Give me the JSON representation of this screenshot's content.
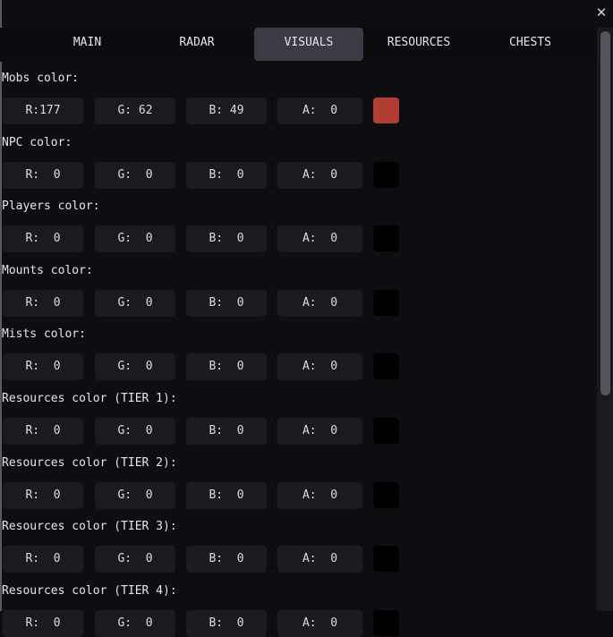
{
  "window": {
    "close_icon": "close-icon"
  },
  "tabs": [
    {
      "label": "MAIN",
      "active": false
    },
    {
      "label": "RADAR",
      "active": false
    },
    {
      "label": "VISUALS",
      "active": true
    },
    {
      "label": "RESOURCES",
      "active": false
    },
    {
      "label": "CHESTS",
      "active": false
    }
  ],
  "colors": {
    "accent_tab": "#3c3b45",
    "background": "#0f0d12",
    "field": "#1b1a21"
  },
  "rows": [
    {
      "label": "Mobs color:",
      "r": "177",
      "g": "62",
      "b": "49",
      "a": "0",
      "swatch": "#b13e31"
    },
    {
      "label": "NPC color:",
      "r": "0",
      "g": "0",
      "b": "0",
      "a": "0",
      "swatch": "#000000"
    },
    {
      "label": "Players color:",
      "r": "0",
      "g": "0",
      "b": "0",
      "a": "0",
      "swatch": "#000000"
    },
    {
      "label": "Mounts color:",
      "r": "0",
      "g": "0",
      "b": "0",
      "a": "0",
      "swatch": "#000000"
    },
    {
      "label": "Mists color:",
      "r": "0",
      "g": "0",
      "b": "0",
      "a": "0",
      "swatch": "#000000"
    },
    {
      "label": "Resources color (TIER 1):",
      "r": "0",
      "g": "0",
      "b": "0",
      "a": "0",
      "swatch": "#000000"
    },
    {
      "label": "Resources color (TIER 2):",
      "r": "0",
      "g": "0",
      "b": "0",
      "a": "0",
      "swatch": "#000000"
    },
    {
      "label": "Resources color (TIER 3):",
      "r": "0",
      "g": "0",
      "b": "0",
      "a": "0",
      "swatch": "#000000"
    },
    {
      "label": "Resources color (TIER 4):",
      "r": "0",
      "g": "0",
      "b": "0",
      "a": "0",
      "swatch": "#000000"
    }
  ],
  "channel_labels": {
    "r": "R:",
    "g": "G:",
    "b": "B:",
    "a": "A:"
  }
}
